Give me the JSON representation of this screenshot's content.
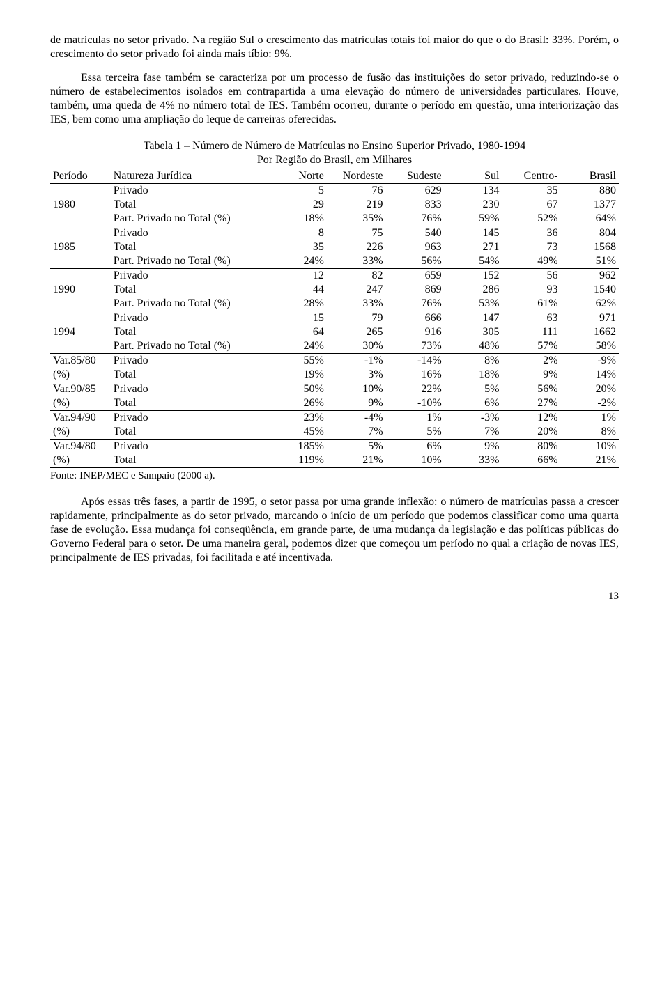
{
  "para1": "de matrículas no setor privado. Na região Sul o crescimento das matrículas totais foi maior do que o do Brasil: 33%. Porém, o crescimento do setor privado foi ainda mais tíbio: 9%.",
  "para2": "Essa terceira fase também se caracteriza por um processo de fusão das instituições do setor privado, reduzindo-se o número de estabelecimentos isolados em contrapartida a uma elevação do número de universidades particulares. Houve, também, uma queda de 4% no número total de IES. Também ocorreu, durante o período em questão, uma interiorização das IES, bem como uma ampliação do leque de carreiras oferecidas.",
  "tableTitle1": "Tabela 1 – Número de Número de Matrículas no Ensino Superior Privado, 1980-1994",
  "tableTitle2": "Por Região do Brasil, em Milhares",
  "headers": {
    "periodo": "Período",
    "natureza": "Natureza Jurídica",
    "norte": "Norte",
    "nordeste": "Nordeste",
    "sudeste": "Sudeste",
    "sul": "Sul",
    "centro": "Centro-",
    "brasil": "Brasil"
  },
  "rowLabels": {
    "privado": "Privado",
    "total": "Total",
    "part": "Part. Privado no Total (%)"
  },
  "groups": [
    {
      "period": "1980",
      "r1": [
        "5",
        "76",
        "629",
        "134",
        "35",
        "880"
      ],
      "r2": [
        "29",
        "219",
        "833",
        "230",
        "67",
        "1377"
      ],
      "r3": [
        "18%",
        "35%",
        "76%",
        "59%",
        "52%",
        "64%"
      ]
    },
    {
      "period": "1985",
      "r1": [
        "8",
        "75",
        "540",
        "145",
        "36",
        "804"
      ],
      "r2": [
        "35",
        "226",
        "963",
        "271",
        "73",
        "1568"
      ],
      "r3": [
        "24%",
        "33%",
        "56%",
        "54%",
        "49%",
        "51%"
      ]
    },
    {
      "period": "1990",
      "r1": [
        "12",
        "82",
        "659",
        "152",
        "56",
        "962"
      ],
      "r2": [
        "44",
        "247",
        "869",
        "286",
        "93",
        "1540"
      ],
      "r3": [
        "28%",
        "33%",
        "76%",
        "53%",
        "61%",
        "62%"
      ]
    },
    {
      "period": "1994",
      "r1": [
        "15",
        "79",
        "666",
        "147",
        "63",
        "971"
      ],
      "r2": [
        "64",
        "265",
        "916",
        "305",
        "111",
        "1662"
      ],
      "r3": [
        "24%",
        "30%",
        "73%",
        "48%",
        "57%",
        "58%"
      ]
    }
  ],
  "varGroups": [
    {
      "pTop": "Var.85/80",
      "pBot": "(%)",
      "r1": [
        "55%",
        "-1%",
        "-14%",
        "8%",
        "2%",
        "-9%"
      ],
      "r2": [
        "19%",
        "3%",
        "16%",
        "18%",
        "9%",
        "14%"
      ]
    },
    {
      "pTop": "Var.90/85",
      "pBot": "(%)",
      "r1": [
        "50%",
        "10%",
        "22%",
        "5%",
        "56%",
        "20%"
      ],
      "r2": [
        "26%",
        "9%",
        "-10%",
        "6%",
        "27%",
        "-2%"
      ]
    },
    {
      "pTop": "Var.94/90",
      "pBot": "(%)",
      "r1": [
        "23%",
        "-4%",
        "1%",
        "-3%",
        "12%",
        "1%"
      ],
      "r2": [
        "45%",
        "7%",
        "5%",
        "7%",
        "20%",
        "8%"
      ]
    },
    {
      "pTop": "Var.94/80",
      "pBot": "(%)",
      "r1": [
        "185%",
        "5%",
        "6%",
        "9%",
        "80%",
        "10%"
      ],
      "r2": [
        "119%",
        "21%",
        "10%",
        "33%",
        "66%",
        "21%"
      ]
    }
  ],
  "source": "Fonte: INEP/MEC e Sampaio (2000 a).",
  "para3": "Após essas três fases, a partir de 1995, o setor passa por uma grande inflexão: o número de matrículas passa a crescer rapidamente, principalmente as do setor privado, marcando o início de um período que podemos classificar como uma quarta fase de evolução. Essa mudança foi conseqüência, em grande parte, de uma mudança da legislação e das políticas públicas do Governo Federal para o setor. De uma maneira geral, podemos dizer que começou um período no qual a criação de novas IES, principalmente de IES privadas, foi facilitada e até incentivada.",
  "pageNumber": "13"
}
